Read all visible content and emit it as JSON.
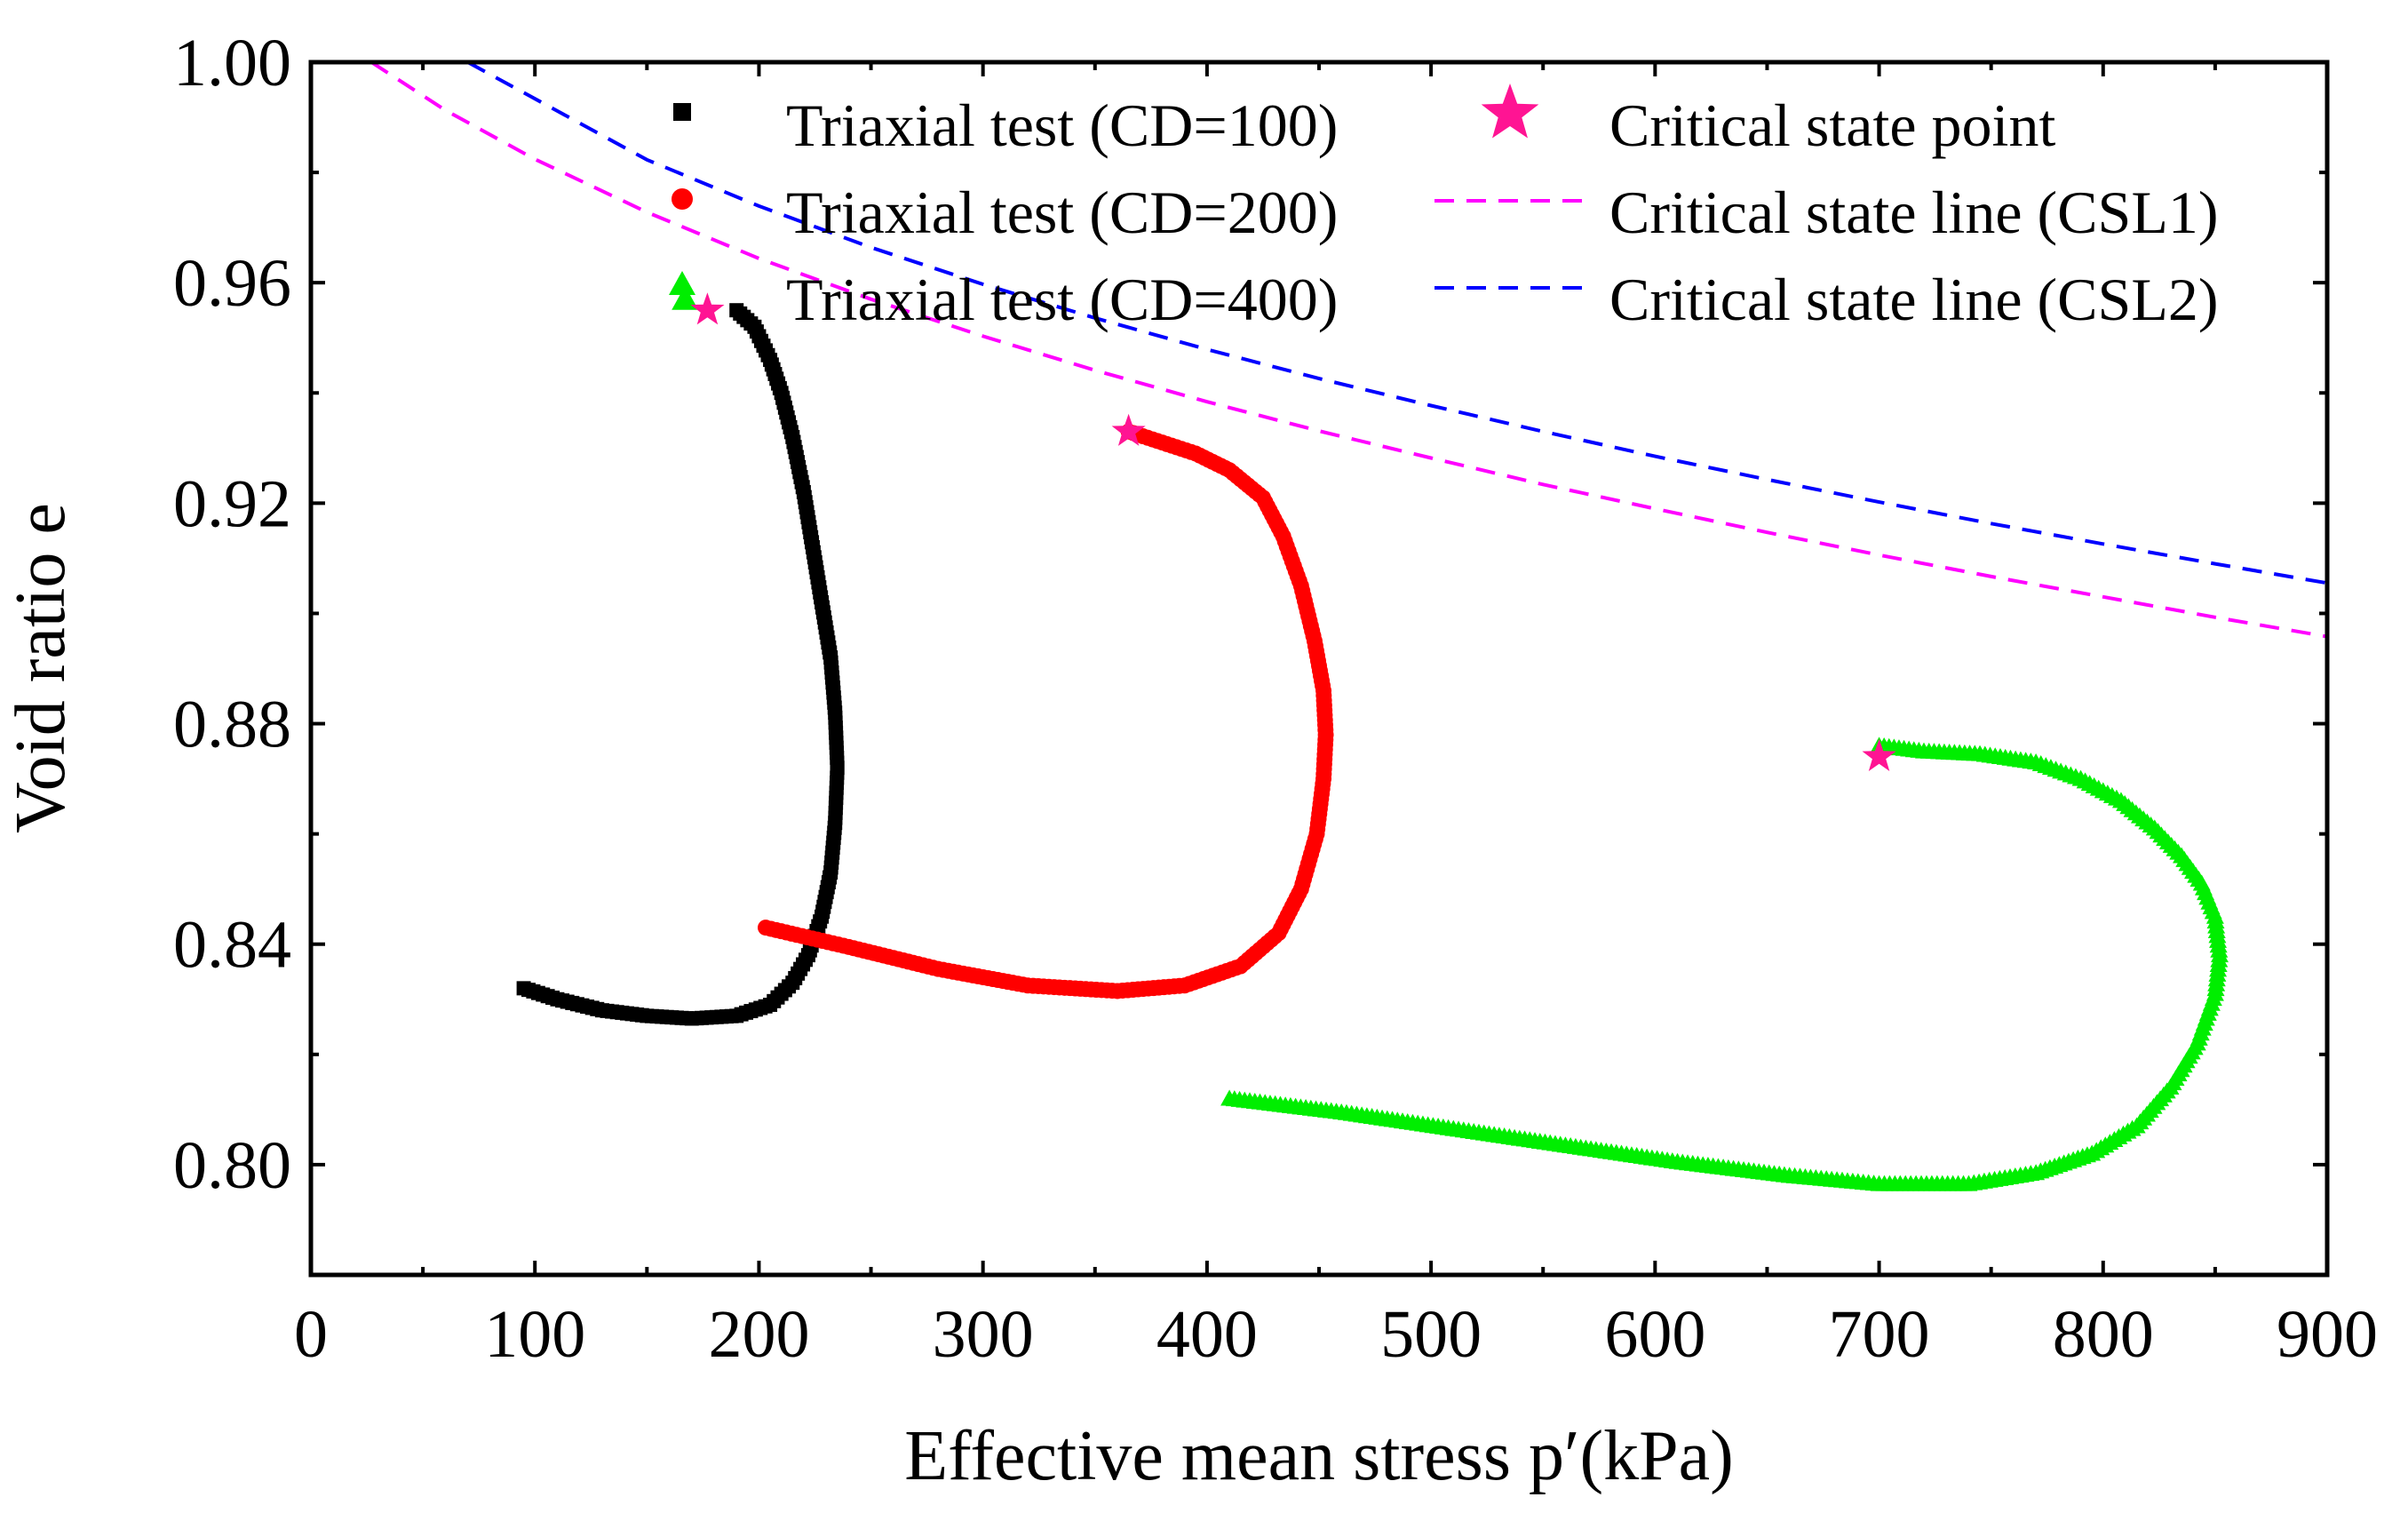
{
  "chart_data": {
    "type": "scatter",
    "title": "",
    "xlabel": "Effective mean stress p′(kPa)",
    "ylabel": "Void ratio e",
    "xlim": [
      0,
      900
    ],
    "ylim": [
      0.78,
      1.0
    ],
    "x_ticks": [
      "0",
      "100",
      "200",
      "300",
      "400",
      "500",
      "600",
      "700",
      "800",
      "900"
    ],
    "y_ticks": [
      "0.80",
      "0.84",
      "0.88",
      "0.92",
      "0.96",
      "1.00"
    ],
    "grid": false,
    "legend_position": "top",
    "colors": {
      "cd100": "#000000",
      "cd200": "#ff0000",
      "cd400": "#00ee00",
      "critical_point": "#ff1493",
      "csl1": "#ff00ff",
      "csl2": "#0000ff"
    },
    "series": [
      {
        "name": "Triaxial test (CD=100)",
        "marker": "square",
        "x": [
          95,
          110,
          130,
          150,
          170,
          190,
          205,
          215,
          222,
          228,
          232,
          234,
          235,
          234,
          232,
          228,
          224,
          220,
          215,
          210,
          205,
          198,
          190
        ],
        "y": [
          0.832,
          0.83,
          0.828,
          0.827,
          0.8265,
          0.827,
          0.829,
          0.833,
          0.838,
          0.845,
          0.853,
          0.862,
          0.872,
          0.882,
          0.892,
          0.902,
          0.912,
          0.922,
          0.932,
          0.94,
          0.946,
          0.952,
          0.955
        ]
      },
      {
        "name": "Triaxial test (CD=200)",
        "marker": "circle",
        "x": [
          203,
          240,
          280,
          320,
          360,
          390,
          415,
          432,
          442,
          449,
          452,
          453,
          452,
          448,
          442,
          434,
          425,
          410,
          395,
          380,
          365
        ],
        "y": [
          0.843,
          0.8395,
          0.8355,
          0.8325,
          0.8315,
          0.8325,
          0.836,
          0.842,
          0.85,
          0.86,
          0.87,
          0.878,
          0.886,
          0.895,
          0.905,
          0.914,
          0.921,
          0.926,
          0.929,
          0.931,
          0.933
        ]
      },
      {
        "name": "Triaxial test (CD=400)",
        "marker": "triangle",
        "x": [
          410,
          460,
          510,
          560,
          610,
          660,
          700,
          740,
          770,
          795,
          815,
          830,
          842,
          850,
          852,
          850,
          844,
          835,
          823,
          808,
          790,
          770,
          745,
          720,
          700
        ],
        "y": [
          0.812,
          0.8095,
          0.8065,
          0.8035,
          0.8005,
          0.798,
          0.7965,
          0.7965,
          0.7985,
          0.802,
          0.807,
          0.814,
          0.822,
          0.831,
          0.838,
          0.845,
          0.851,
          0.856,
          0.861,
          0.866,
          0.87,
          0.873,
          0.8745,
          0.875,
          0.876
        ]
      }
    ],
    "critical_state_points": {
      "name": "Critical state point",
      "marker": "star",
      "x": [
        177,
        365,
        700
      ],
      "y": [
        0.955,
        0.933,
        0.874
      ]
    },
    "initial_markers": {
      "marker": "triangle",
      "x": [
        167
      ],
      "y": [
        0.957
      ]
    },
    "lines": [
      {
        "name": "Critical state line (CSL1)",
        "style": "dashed",
        "x": [
          27,
          60,
          100,
          150,
          200,
          250,
          300,
          350,
          400,
          450,
          500,
          550,
          600,
          650,
          700,
          750,
          800,
          850,
          900
        ],
        "y": [
          1.0,
          0.9913,
          0.9824,
          0.9728,
          0.9644,
          0.957,
          0.9503,
          0.9441,
          0.9384,
          0.9331,
          0.9282,
          0.9234,
          0.919,
          0.9147,
          0.9106,
          0.9067,
          0.903,
          0.8993,
          0.8958
        ]
      },
      {
        "name": "Critical state line (CSL2)",
        "style": "dashed",
        "x": [
          70,
          150,
          200,
          250,
          300,
          350,
          400,
          450,
          500,
          550,
          600,
          650,
          700,
          750,
          800,
          850,
          900
        ],
        "y": [
          1.0,
          0.9823,
          0.9739,
          0.9664,
          0.9597,
          0.9536,
          0.9479,
          0.9426,
          0.9377,
          0.933,
          0.9285,
          0.9243,
          0.9202,
          0.9163,
          0.9126,
          0.909,
          0.9055
        ]
      }
    ],
    "legend": {
      "entries": [
        "Triaxial test (CD=100)",
        "Triaxial test (CD=200)",
        "Triaxial test (CD=400)",
        "Critical state point",
        "Critical state line (CSL1)",
        "Critical state line (CSL2)"
      ]
    }
  }
}
